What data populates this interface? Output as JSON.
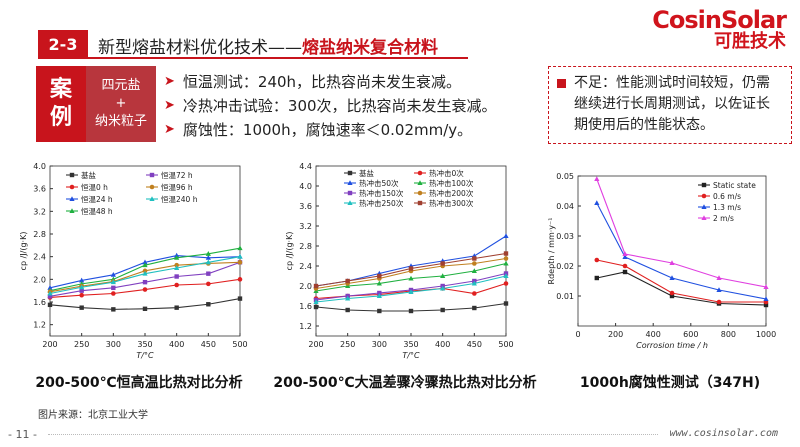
{
  "header": {
    "section": "2-3",
    "title_prefix": "新型熔盐材料优化技术——",
    "title_highlight": "熔盐纳米复合材料"
  },
  "logo": {
    "line1": "CosinSolar",
    "line2": "可胜技术"
  },
  "case": {
    "label_a": "案",
    "label_b": "例",
    "material_a": "四元盐",
    "material_plus": "+",
    "material_b": "纳米粒子"
  },
  "points": [
    "恒温测试：240h，比热容尚未发生衰减。",
    "冷热冲击试验：300次，比热容尚未发生衰减。",
    "腐蚀性：1000h，腐蚀速率＜0.02mm/y。"
  ],
  "note": "不足：性能测试时间较短，仍需继续进行长周期测试，以佐证长期使用后的性能状态。",
  "colors": {
    "accent": "#c8141c"
  },
  "captions": {
    "c1": "200-500℃恒高温比热对比分析",
    "c2": "200-500℃大温差骤冷骤热比热对比分析",
    "c3": "1000h腐蚀性测试（347H)"
  },
  "source": "图片来源：北京工业大学",
  "page_number": "- 11 -",
  "url": "www.cosinsolar.com",
  "chart_data": [
    {
      "type": "line",
      "ylabel": "cp /J/(g·K)",
      "xlabel": "T/°C",
      "xlim": [
        200,
        500
      ],
      "ylim": [
        1.0,
        4.0
      ],
      "yticks": [
        "1.2",
        "1.6",
        "2.0",
        "2.4",
        "2.8",
        "3.2",
        "3.6",
        "4.0"
      ],
      "xticks": [
        "200",
        "250",
        "300",
        "350",
        "400",
        "450",
        "500"
      ],
      "x": [
        200,
        250,
        300,
        350,
        400,
        450,
        500
      ],
      "series": [
        {
          "name": "基盐",
          "color": "#333333",
          "values": [
            1.55,
            1.5,
            1.47,
            1.48,
            1.5,
            1.56,
            1.66
          ]
        },
        {
          "name": "恒温0 h",
          "color": "#e02020",
          "values": [
            1.68,
            1.72,
            1.75,
            1.82,
            1.9,
            1.92,
            2.0
          ]
        },
        {
          "name": "恒温24 h",
          "color": "#2050e0",
          "values": [
            1.85,
            1.98,
            2.08,
            2.3,
            2.42,
            2.38,
            2.4
          ]
        },
        {
          "name": "恒温48 h",
          "color": "#20b040",
          "values": [
            1.8,
            1.92,
            2.0,
            2.25,
            2.38,
            2.45,
            2.55
          ]
        },
        {
          "name": "恒温72 h",
          "color": "#8040c0",
          "values": [
            1.7,
            1.8,
            1.85,
            1.95,
            2.05,
            2.1,
            2.3
          ]
        },
        {
          "name": "恒温96 h",
          "color": "#c08020",
          "values": [
            1.78,
            1.88,
            1.96,
            2.15,
            2.25,
            2.28,
            2.3
          ]
        },
        {
          "name": "恒温240 h",
          "color": "#20c0c0",
          "values": [
            1.75,
            1.86,
            1.95,
            2.1,
            2.2,
            2.3,
            2.4
          ]
        }
      ]
    },
    {
      "type": "line",
      "ylabel": "cp /J/(g·K)",
      "xlabel": "T/°C",
      "xlim": [
        200,
        500
      ],
      "ylim": [
        1.0,
        4.4
      ],
      "yticks": [
        "1.2",
        "1.6",
        "2.0",
        "2.4",
        "2.8",
        "3.2",
        "3.6",
        "4.0",
        "4.4"
      ],
      "xticks": [
        "200",
        "250",
        "300",
        "350",
        "400",
        "450",
        "500"
      ],
      "x": [
        200,
        250,
        300,
        350,
        400,
        450,
        500
      ],
      "series": [
        {
          "name": "基盐",
          "color": "#333333",
          "values": [
            1.58,
            1.52,
            1.5,
            1.5,
            1.52,
            1.56,
            1.65
          ]
        },
        {
          "name": "热冲击0次",
          "color": "#e02020",
          "values": [
            1.75,
            1.8,
            1.83,
            1.9,
            1.95,
            1.85,
            2.05
          ]
        },
        {
          "name": "热冲击50次",
          "color": "#2050e0",
          "values": [
            2.0,
            2.1,
            2.25,
            2.4,
            2.5,
            2.6,
            3.0
          ]
        },
        {
          "name": "热冲击100次",
          "color": "#20b040",
          "values": [
            1.9,
            2.0,
            2.05,
            2.15,
            2.2,
            2.3,
            2.45
          ]
        },
        {
          "name": "热冲击150次",
          "color": "#8040c0",
          "values": [
            1.72,
            1.8,
            1.86,
            1.92,
            2.0,
            2.1,
            2.25
          ]
        },
        {
          "name": "热冲击200次",
          "color": "#c08020",
          "values": [
            1.95,
            2.05,
            2.15,
            2.3,
            2.4,
            2.45,
            2.55
          ]
        },
        {
          "name": "热冲击250次",
          "color": "#20c0c0",
          "values": [
            1.68,
            1.75,
            1.8,
            1.88,
            1.95,
            2.05,
            2.2
          ]
        },
        {
          "name": "热冲击300次",
          "color": "#a04030",
          "values": [
            2.0,
            2.1,
            2.2,
            2.35,
            2.45,
            2.55,
            2.65
          ]
        }
      ]
    },
    {
      "type": "line",
      "ylabel": "Rdepth / mm·y⁻¹",
      "xlabel": "Corrosion time / h",
      "xlim": [
        0,
        1000
      ],
      "ylim": [
        0,
        0.05
      ],
      "yticks": [
        "0.01",
        "0.02",
        "0.03",
        "0.04",
        "0.05"
      ],
      "xticks": [
        "0",
        "200",
        "400",
        "600",
        "800",
        "1000"
      ],
      "x": [
        100,
        250,
        500,
        750,
        1000
      ],
      "series": [
        {
          "name": "Static state",
          "color": "#222222",
          "values": [
            0.016,
            0.018,
            0.01,
            0.0075,
            0.007
          ]
        },
        {
          "name": "0.6 m/s",
          "color": "#e02020",
          "values": [
            0.022,
            0.02,
            0.011,
            0.008,
            0.008
          ]
        },
        {
          "name": "1.3 m/s",
          "color": "#2050e0",
          "values": [
            0.041,
            0.023,
            0.016,
            0.012,
            0.009
          ]
        },
        {
          "name": "2 m/s",
          "color": "#e040e0",
          "values": [
            0.049,
            0.024,
            0.021,
            0.016,
            0.013
          ]
        }
      ]
    }
  ]
}
